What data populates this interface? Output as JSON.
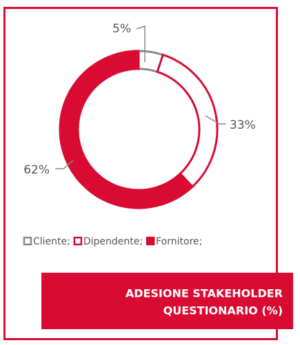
{
  "chart_data": {
    "type": "donut",
    "title": [
      "ADESIONE STAKEHOLDER",
      "QUESTIONARIO (%)"
    ],
    "categories": [
      "Cliente;",
      "Dipendente;",
      "Fornitore;"
    ],
    "values": [
      5,
      33,
      62
    ],
    "value_labels": [
      "5%",
      "33%",
      "62%"
    ],
    "colors": [
      "#ffffff",
      "#ffffff",
      "#d90b32"
    ],
    "stroke_colors": [
      "#888888",
      "#d90b32",
      "#d90b32"
    ]
  }
}
